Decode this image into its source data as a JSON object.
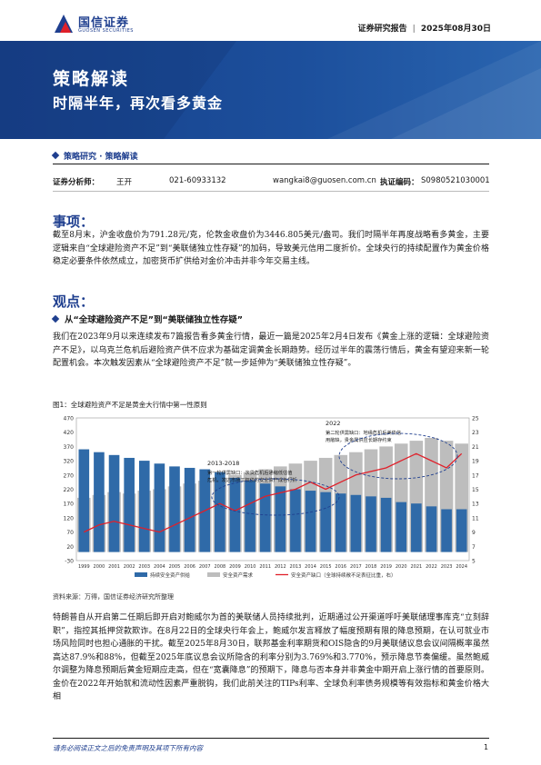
{
  "header": {
    "logo_cn": "国信证券",
    "logo_en": "GUOSEN SECURITIES",
    "report_type": "证券研究报告",
    "date": "2025年08月30日"
  },
  "banner": {
    "title": "策略解读",
    "subtitle": "时隔半年，再次看多黄金"
  },
  "category": "策略研究 · 策略解读",
  "analyst": {
    "label": "证券分析师：",
    "name": "王开",
    "phone": "021-60933132",
    "email": "wangkai8@guosen.com.cn",
    "license_label": "执证编码：",
    "license": "S0980521030001"
  },
  "events": {
    "heading": "事项：",
    "body": "截至8月末，沪金收盘价为791.28元/克，伦敦金收盘价为3446.805美元/盎司。我们时隔半年再度战略看多黄金，主要逻辑来自“全球避险资产不足”到“美联储独立性存疑”的加码，导致美元信用二度折价。全球央行的持续配置作为黄金价格稳定必要条件依然成立，加密货币扩供给对金价冲击并非今年交易主线。"
  },
  "views": {
    "heading": "观点：",
    "point1_title": "从“全球避险资产不足”到“美联储独立性存疑”",
    "point1_body": "我们在2023年9月以来连续发布7篇报告看多黄金行情，最近一篇是2025年2月4日发布《黄金上涨的逻辑：全球避险资产不足》，以乌克兰危机后避险资产供不应求为基础定调黄金长期趋势。经历过半年的震荡行情后，黄金有望迎来新一轮配置机会。本次触发因素从“全球避险资产不足”就一步延伸为“美联储独立性存疑”。"
  },
  "figure": {
    "caption": "图1：全球避险资产不足是黄金大行情中第一性原则",
    "source": "资料来源：万得，国信证券经济研究所整理"
  },
  "chart_data": {
    "type": "bar",
    "title": "",
    "left_axis_ticks": [
      "470",
      "420",
      "370",
      "320",
      "270",
      "220",
      "170",
      "120",
      "70",
      "20",
      "-30"
    ],
    "right_axis_ticks": [
      "25",
      "23",
      "21",
      "19",
      "17",
      "15",
      "13",
      "11",
      "9",
      "7",
      "5"
    ],
    "ylim_left": [
      -30,
      470
    ],
    "ylim_right": [
      5,
      25
    ],
    "x_ticks": [
      "1999",
      "2000",
      "2001",
      "2002",
      "2003",
      "2004",
      "2005",
      "2006",
      "2007",
      "2008",
      "2009",
      "2010",
      "2011",
      "2012",
      "2013",
      "2014",
      "2015",
      "2016",
      "2017",
      "2018",
      "2019",
      "2020",
      "2021",
      "2022",
      "2023",
      "2024"
    ],
    "legend": [
      "持续安全资产供给",
      "安全资产需求",
      "安全资产缺口（全球持续敞不足表征比重，右）"
    ],
    "legend_position": "bottom",
    "annotations": [
      {
        "label": "2013-2018",
        "text": "第一轮供需缺口：次贷危机后通缩低估值危机，发达市场工权债的安全资产成色打折"
      },
      {
        "label": "2022",
        "text": "第二轮供需缺口：地缘危机后美债信用敞缺，贵金属供应长期存约束"
      }
    ],
    "series": [
      {
        "name": "持续安全资产供给",
        "values": [
          360,
          350,
          340,
          330,
          320,
          310,
          300,
          295,
          290,
          280,
          260,
          250,
          240,
          230,
          220,
          215,
          210,
          205,
          200,
          195,
          190,
          175,
          170,
          160,
          150,
          150
        ]
      },
      {
        "name": "安全资产需求",
        "values": [
          190,
          200,
          210,
          205,
          215,
          220,
          230,
          240,
          250,
          260,
          270,
          280,
          290,
          300,
          310,
          320,
          330,
          340,
          350,
          360,
          370,
          380,
          390,
          400,
          390,
          380
        ]
      },
      {
        "name": "安全资产缺口（全球持续敞不足表征比重，右）",
        "values": [
          9,
          10,
          10.5,
          10,
          9.5,
          9,
          10,
          11,
          12,
          13,
          12,
          13,
          14,
          14.5,
          15,
          16,
          15,
          16,
          17,
          17.5,
          18,
          19,
          20,
          19,
          18,
          20
        ]
      }
    ]
  },
  "body2": "特朗普自从开启第二任期后即开启对鲍威尔为首的美联储人员持续批判，近期通过公开渠道呼吁美联储理事库克“立刻辞职”，指控其抵押贷款欺诈。在8月22日的全球央行年会上，鲍威尔发言释放了幅度预期有限的降息预期，在认可就业市场风险同时也担心通胀的干扰。截至2025年8月30日，联邦基金利率期货和OIS隐含的9月美联储议息会议间隔概率虽然高达87.9%和88%，但截至2025年底议息会议所隐含的利率分别为3.769%和3.770%，预示降息节奏偏缓。虽然鲍威尔调整为降息预期后黄金短期应走高，但在“宽囊降息”的预期下，降息与否本身并非黄金中期开启上涨行情的首要原则。金价在2022年开始就和流动性因素严重脱钩，我们此前关注的TIPs利率、全球负利率债务规模等有效指标和黄金价格大相",
  "footer": {
    "disclaimer": "请务必阅读正文之后的免责声明及其项下所有内容",
    "page": "1"
  },
  "colors": {
    "brand": "#1f3f8f",
    "bar_supply": "#2f6aa8",
    "bar_demand": "#bdbdbd",
    "gap_line": "#e0202a"
  }
}
